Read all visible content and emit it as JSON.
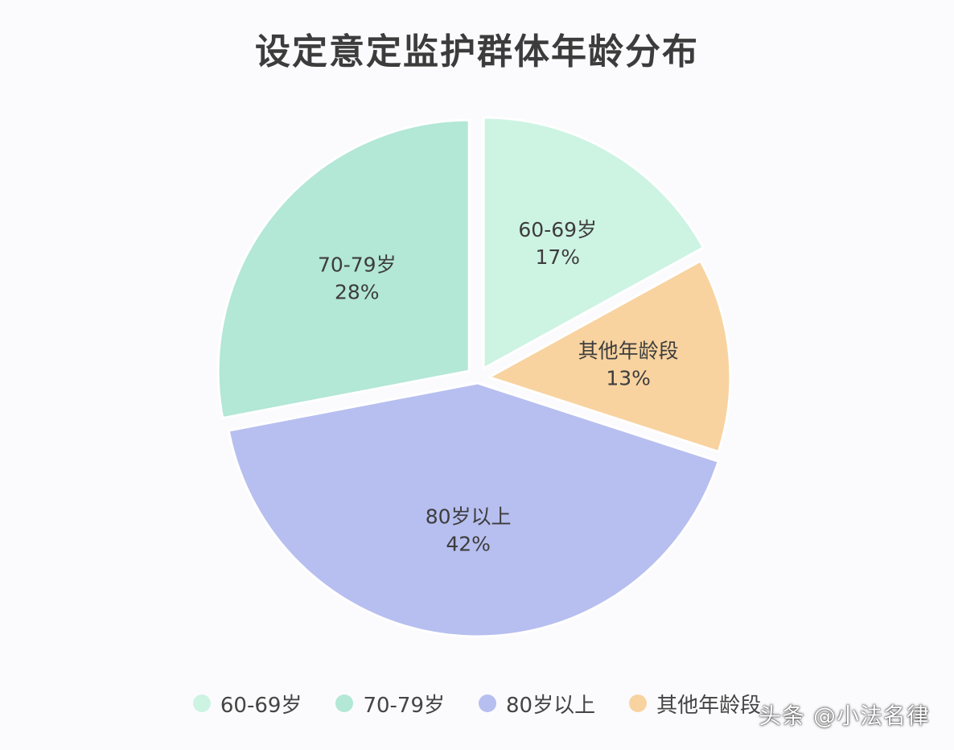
{
  "chart_data": {
    "type": "pie",
    "title": "设定意定监护群体年龄分布",
    "slices": [
      {
        "name": "60-69岁",
        "percent_label": "17%",
        "value": 17,
        "color": "#cdf3e3"
      },
      {
        "name": "其他年龄段",
        "percent_label": "13%",
        "value": 13,
        "color": "#f8d3a0"
      },
      {
        "name": "80岁以上",
        "percent_label": "42%",
        "value": 42,
        "color": "#b7bff0"
      },
      {
        "name": "70-79岁",
        "percent_label": "28%",
        "value": 28,
        "color": "#b3e7d6"
      }
    ],
    "legend": [
      {
        "name": "60-69岁",
        "color": "#cdf3e3"
      },
      {
        "name": "70-79岁",
        "color": "#b3e7d6"
      },
      {
        "name": "80岁以上",
        "color": "#b7bff0"
      },
      {
        "name": "其他年龄段",
        "color": "#f8d3a0"
      }
    ],
    "legend_position": "bottom"
  },
  "watermark": "头条 @小法名律"
}
